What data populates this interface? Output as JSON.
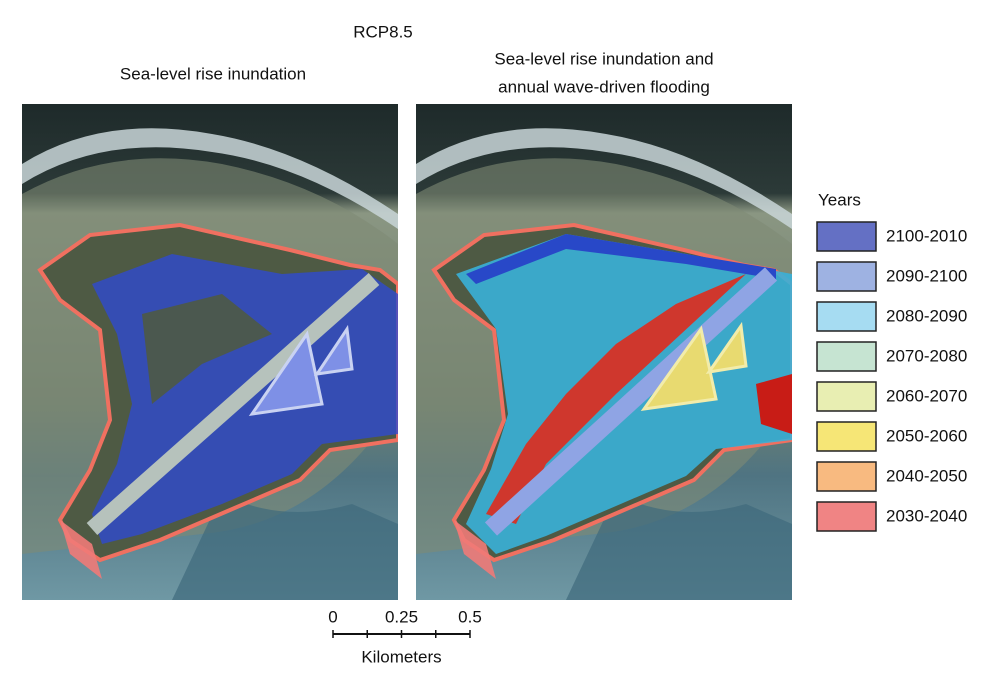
{
  "title": "RCP8.5",
  "panels": [
    {
      "title_lines": [
        "Sea-level rise inundation"
      ]
    },
    {
      "title_lines": [
        "Sea-level rise inundation and",
        "annual wave-driven flooding"
      ]
    }
  ],
  "legend": {
    "title": "Years",
    "items": [
      {
        "label": "2100-2010",
        "color": "#6470c4"
      },
      {
        "label": "2090-2100",
        "color": "#9eb2e2"
      },
      {
        "label": "2080-2090",
        "color": "#a6dcf2"
      },
      {
        "label": "2070-2080",
        "color": "#c6e4d2"
      },
      {
        "label": "2060-2070",
        "color": "#e8eeb2"
      },
      {
        "label": "2050-2060",
        "color": "#f6e676"
      },
      {
        "label": "2040-2050",
        "color": "#f8ba80"
      },
      {
        "label": "2030-2040",
        "color": "#f08484"
      }
    ]
  },
  "scale_bar": {
    "ticks": [
      0,
      0.25,
      0.5
    ],
    "unit": "Kilometers"
  }
}
